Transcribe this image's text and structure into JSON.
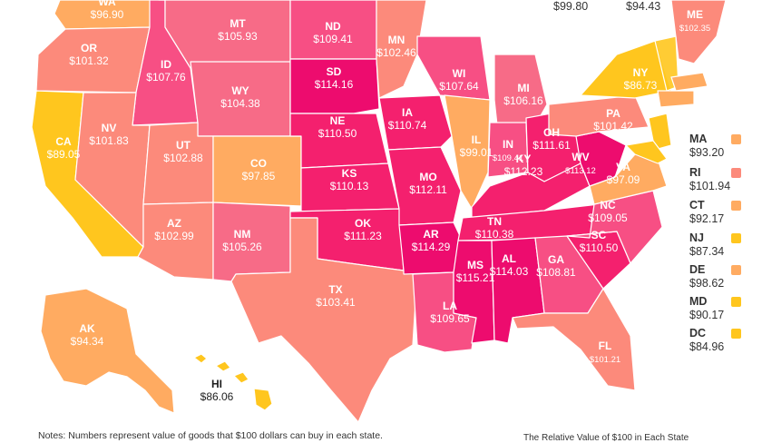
{
  "colors": {
    "c1": "#ffc61e",
    "c2": "#ffab61",
    "c3": "#fc8a7b",
    "c4": "#f76b87",
    "c5": "#f74f84",
    "c6": "#f4206e",
    "c7": "#ed0c6e"
  },
  "states": [
    {
      "abbr": "WA",
      "value": "$96.90",
      "color": "c2"
    },
    {
      "abbr": "OR",
      "value": "$101.32",
      "color": "c3"
    },
    {
      "abbr": "CA",
      "value": "$89.05",
      "color": "c1"
    },
    {
      "abbr": "ID",
      "value": "$107.76",
      "color": "c5"
    },
    {
      "abbr": "NV",
      "value": "$101.83",
      "color": "c3"
    },
    {
      "abbr": "MT",
      "value": "$105.93",
      "color": "c4"
    },
    {
      "abbr": "WY",
      "value": "$104.38",
      "color": "c4"
    },
    {
      "abbr": "UT",
      "value": "$102.88",
      "color": "c3"
    },
    {
      "abbr": "AZ",
      "value": "$102.99",
      "color": "c3"
    },
    {
      "abbr": "CO",
      "value": "$97.85",
      "color": "c2"
    },
    {
      "abbr": "NM",
      "value": "$105.26",
      "color": "c4"
    },
    {
      "abbr": "ND",
      "value": "$109.41",
      "color": "c5"
    },
    {
      "abbr": "SD",
      "value": "$114.16",
      "color": "c7"
    },
    {
      "abbr": "NE",
      "value": "$110.50",
      "color": "c6"
    },
    {
      "abbr": "KS",
      "value": "$110.13",
      "color": "c6"
    },
    {
      "abbr": "OK",
      "value": "$111.23",
      "color": "c6"
    },
    {
      "abbr": "TX",
      "value": "$103.41",
      "color": "c3"
    },
    {
      "abbr": "MN",
      "value": "$102.46",
      "color": "c3"
    },
    {
      "abbr": "IA",
      "value": "$110.74",
      "color": "c6"
    },
    {
      "abbr": "MO",
      "value": "$112.11",
      "color": "c6"
    },
    {
      "abbr": "AR",
      "value": "$114.29",
      "color": "c7"
    },
    {
      "abbr": "LA",
      "value": "$109.65",
      "color": "c5"
    },
    {
      "abbr": "WI",
      "value": "$107.64",
      "color": "c5"
    },
    {
      "abbr": "IL",
      "value": "$99.01",
      "color": "c2"
    },
    {
      "abbr": "MI",
      "value": "$106.16",
      "color": "c4"
    },
    {
      "abbr": "IN",
      "value": "$109.41",
      "color": "c5"
    },
    {
      "abbr": "OH",
      "value": "$111.61",
      "color": "c6"
    },
    {
      "abbr": "KY",
      "value": "$112.23",
      "color": "c6"
    },
    {
      "abbr": "TN",
      "value": "$110.38",
      "color": "c6"
    },
    {
      "abbr": "MS",
      "value": "$115.21",
      "color": "c7"
    },
    {
      "abbr": "AL",
      "value": "$114.03",
      "color": "c7"
    },
    {
      "abbr": "GA",
      "value": "$108.81",
      "color": "c5"
    },
    {
      "abbr": "FL",
      "value": "$101.21",
      "color": "c3"
    },
    {
      "abbr": "SC",
      "value": "$110.50",
      "color": "c6"
    },
    {
      "abbr": "NC",
      "value": "$109.05",
      "color": "c5"
    },
    {
      "abbr": "VA",
      "value": "$97.09",
      "color": "c2"
    },
    {
      "abbr": "WV",
      "value": "$113.12",
      "color": "c7"
    },
    {
      "abbr": "PA",
      "value": "$101.42",
      "color": "c3"
    },
    {
      "abbr": "NY",
      "value": "$86.73",
      "color": "c1"
    },
    {
      "abbr": "ME",
      "value": "$102.35",
      "color": "c3"
    },
    {
      "abbr": "AK",
      "value": "$94.34",
      "color": "c2"
    },
    {
      "abbr": "HI",
      "value": "$86.06",
      "color": "c1"
    }
  ],
  "top_values": [
    "$99.80",
    "$94.43"
  ],
  "legend": [
    {
      "abbr": "MA",
      "value": "$93.20",
      "color": "c2"
    },
    {
      "abbr": "RI",
      "value": "$101.94",
      "color": "c3"
    },
    {
      "abbr": "CT",
      "value": "$92.17",
      "color": "c2"
    },
    {
      "abbr": "NJ",
      "value": "$87.34",
      "color": "c1"
    },
    {
      "abbr": "DE",
      "value": "$98.62",
      "color": "c2"
    },
    {
      "abbr": "MD",
      "value": "$90.17",
      "color": "c1"
    },
    {
      "abbr": "DC",
      "value": "$84.96",
      "color": "c1"
    }
  ],
  "notes": "Notes: Numbers represent value of goods that $100 dollars can buy in each state.",
  "source": "The Relative Value of $100 in Each State"
}
